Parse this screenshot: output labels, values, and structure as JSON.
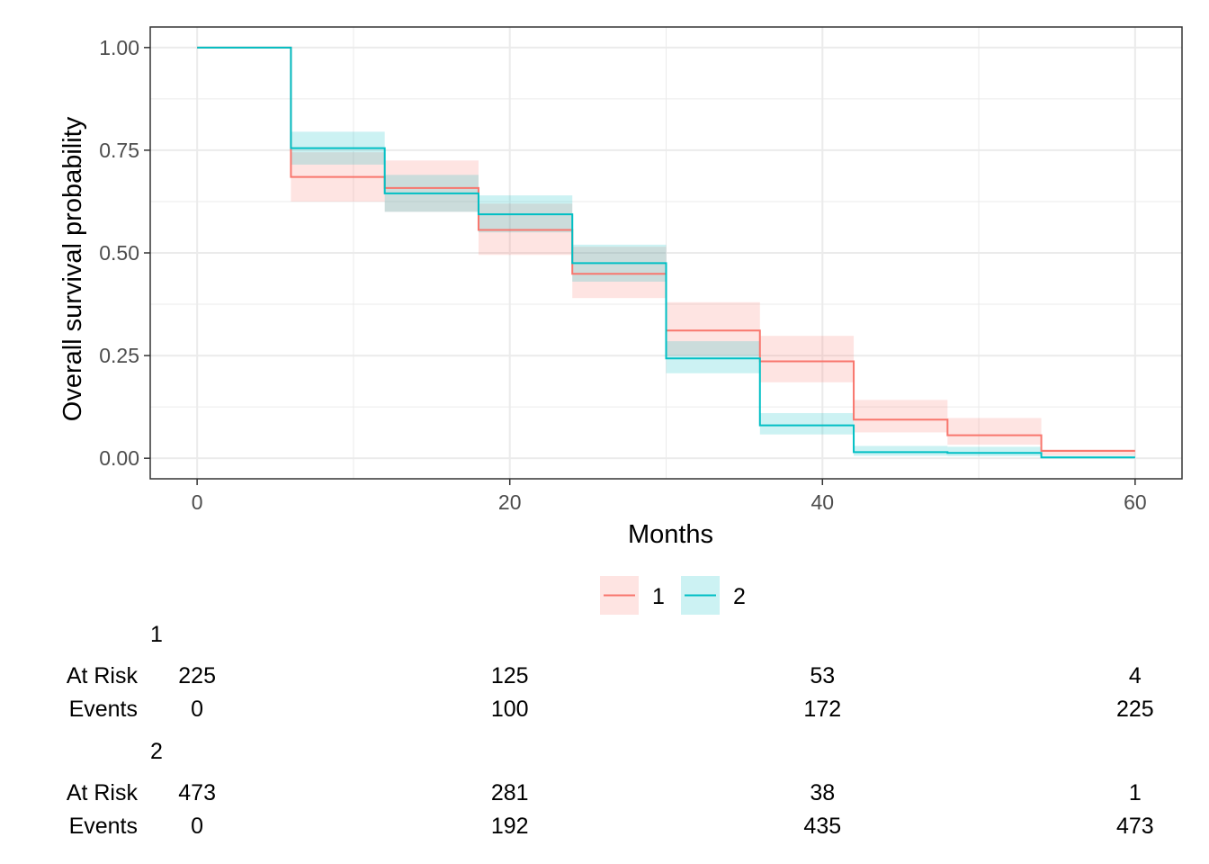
{
  "chart_data": {
    "type": "line",
    "subtype": "kaplan-meier-step",
    "xlabel": "Months",
    "ylabel": "Overall survival probability",
    "xlim": [
      -3,
      63
    ],
    "ylim": [
      -0.05,
      1.05
    ],
    "x_ticks": [
      0,
      20,
      40,
      60
    ],
    "x_tick_labels": [
      "0",
      "20",
      "40",
      "60"
    ],
    "y_ticks": [
      0,
      0.25,
      0.5,
      0.75,
      1.0
    ],
    "y_tick_labels": [
      "0.00",
      "0.25",
      "0.50",
      "0.75",
      "1.00"
    ],
    "grid": true,
    "legend_position": "bottom",
    "series": [
      {
        "name": "1",
        "color": "#F8766D",
        "fill": "#F8766D",
        "steps": [
          {
            "x0": 0,
            "x1": 6,
            "y": 1.0,
            "lower": 1.0,
            "upper": 1.0
          },
          {
            "x0": 6,
            "x1": 12,
            "y": 0.685,
            "lower": 0.625,
            "upper": 0.745
          },
          {
            "x0": 12,
            "x1": 18,
            "y": 0.658,
            "lower": 0.6,
            "upper": 0.725
          },
          {
            "x0": 18,
            "x1": 24,
            "y": 0.556,
            "lower": 0.495,
            "upper": 0.62
          },
          {
            "x0": 24,
            "x1": 30,
            "y": 0.449,
            "lower": 0.39,
            "upper": 0.515
          },
          {
            "x0": 30,
            "x1": 36,
            "y": 0.311,
            "lower": 0.25,
            "upper": 0.38
          },
          {
            "x0": 36,
            "x1": 42,
            "y": 0.236,
            "lower": 0.185,
            "upper": 0.298
          },
          {
            "x0": 42,
            "x1": 48,
            "y": 0.094,
            "lower": 0.063,
            "upper": 0.142
          },
          {
            "x0": 48,
            "x1": 54,
            "y": 0.056,
            "lower": 0.033,
            "upper": 0.098
          },
          {
            "x0": 54,
            "x1": 60,
            "y": 0.018,
            "lower": 0.007,
            "upper": 0.022
          }
        ]
      },
      {
        "name": "2",
        "color": "#00BFC4",
        "fill": "#00BFC4",
        "steps": [
          {
            "x0": 0,
            "x1": 6,
            "y": 1.0,
            "lower": 1.0,
            "upper": 1.0
          },
          {
            "x0": 6,
            "x1": 12,
            "y": 0.755,
            "lower": 0.715,
            "upper": 0.795
          },
          {
            "x0": 12,
            "x1": 18,
            "y": 0.645,
            "lower": 0.6,
            "upper": 0.69
          },
          {
            "x0": 18,
            "x1": 24,
            "y": 0.594,
            "lower": 0.55,
            "upper": 0.64
          },
          {
            "x0": 24,
            "x1": 30,
            "y": 0.475,
            "lower": 0.43,
            "upper": 0.52
          },
          {
            "x0": 30,
            "x1": 36,
            "y": 0.243,
            "lower": 0.207,
            "upper": 0.285
          },
          {
            "x0": 36,
            "x1": 42,
            "y": 0.08,
            "lower": 0.058,
            "upper": 0.11
          },
          {
            "x0": 42,
            "x1": 48,
            "y": 0.015,
            "lower": 0.006,
            "upper": 0.03
          },
          {
            "x0": 48,
            "x1": 54,
            "y": 0.013,
            "lower": 0.005,
            "upper": 0.028
          },
          {
            "x0": 54,
            "x1": 60,
            "y": 0.002,
            "lower": 0.0,
            "upper": 0.006
          }
        ]
      }
    ],
    "risk_table": {
      "time_points": [
        0,
        20,
        40,
        60
      ],
      "row_labels": [
        "At Risk",
        "Events"
      ],
      "groups": [
        {
          "name": "1",
          "at_risk": [
            "225",
            "125",
            "53",
            "4"
          ],
          "events": [
            "0",
            "100",
            "172",
            "225"
          ]
        },
        {
          "name": "2",
          "at_risk": [
            "473",
            "281",
            "38",
            "1"
          ],
          "events": [
            "0",
            "192",
            "435",
            "473"
          ]
        }
      ]
    }
  }
}
